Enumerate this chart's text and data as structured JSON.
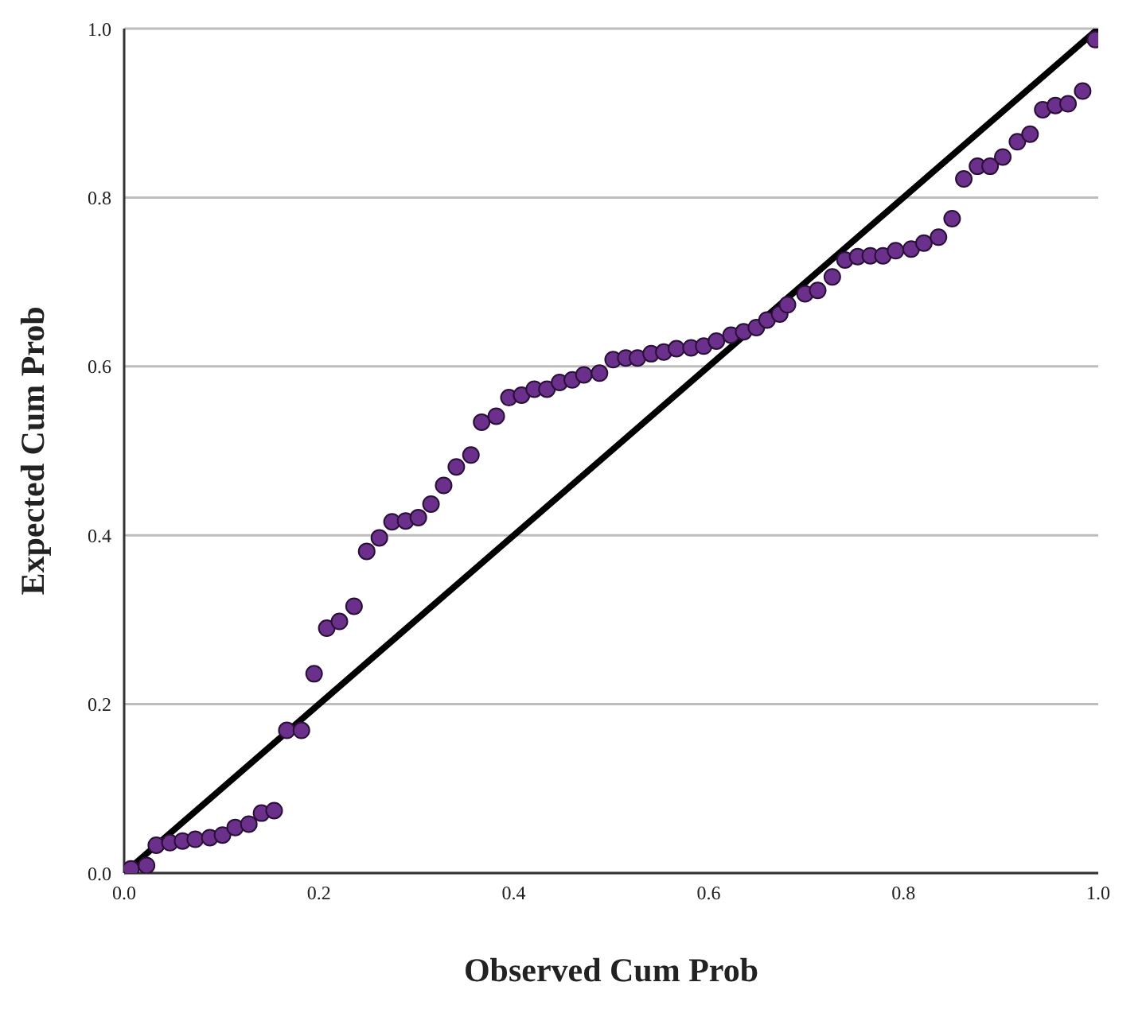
{
  "chart_data": {
    "type": "scatter",
    "xlabel": "Observed Cum Prob",
    "ylabel": "Expected Cum Prob",
    "xlim": [
      0,
      1
    ],
    "ylim": [
      0,
      1
    ],
    "xticks": [
      {
        "value": 0,
        "label": "0.0"
      },
      {
        "value": 0.2,
        "label": "0.2"
      },
      {
        "value": 0.4,
        "label": "0.4"
      },
      {
        "value": 0.6,
        "label": "0.6"
      },
      {
        "value": 0.8,
        "label": "0.8"
      },
      {
        "value": 1,
        "label": "1.0"
      }
    ],
    "yticks": [
      {
        "value": 0,
        "label": "0.0"
      },
      {
        "value": 0.2,
        "label": "0.2"
      },
      {
        "value": 0.4,
        "label": "0.4"
      },
      {
        "value": 0.6,
        "label": "0.6"
      },
      {
        "value": 0.8,
        "label": "0.8"
      },
      {
        "value": 1,
        "label": "1.0"
      }
    ],
    "grid": "y",
    "series": [
      {
        "color": "#6b2f8c",
        "marker": "circle",
        "x": [
          0.007,
          0.023,
          0.033,
          0.047,
          0.06,
          0.073,
          0.088,
          0.101,
          0.114,
          0.128,
          0.141,
          0.154,
          0.167,
          0.182,
          0.195,
          0.208,
          0.221,
          0.236,
          0.249,
          0.262,
          0.275,
          0.289,
          0.302,
          0.315,
          0.328,
          0.341,
          0.356,
          0.367,
          0.382,
          0.395,
          0.408,
          0.421,
          0.434,
          0.447,
          0.46,
          0.472,
          0.488,
          0.502,
          0.515,
          0.527,
          0.541,
          0.554,
          0.567,
          0.582,
          0.595,
          0.608,
          0.623,
          0.636,
          0.649,
          0.66,
          0.673,
          0.681,
          0.699,
          0.712,
          0.727,
          0.74,
          0.753,
          0.766,
          0.779,
          0.792,
          0.808,
          0.821,
          0.836,
          0.85,
          0.862,
          0.876,
          0.889,
          0.902,
          0.917,
          0.93,
          0.943,
          0.956,
          0.969,
          0.984,
          0.997
        ],
        "values": [
          0.005,
          0.009,
          0.033,
          0.036,
          0.038,
          0.04,
          0.042,
          0.045,
          0.054,
          0.058,
          0.071,
          0.074,
          0.169,
          0.169,
          0.236,
          0.29,
          0.298,
          0.316,
          0.381,
          0.397,
          0.416,
          0.417,
          0.421,
          0.437,
          0.459,
          0.481,
          0.495,
          0.534,
          0.541,
          0.563,
          0.566,
          0.573,
          0.573,
          0.581,
          0.584,
          0.59,
          0.592,
          0.608,
          0.61,
          0.61,
          0.615,
          0.617,
          0.621,
          0.622,
          0.624,
          0.63,
          0.637,
          0.641,
          0.646,
          0.655,
          0.662,
          0.673,
          0.686,
          0.69,
          0.706,
          0.726,
          0.73,
          0.731,
          0.731,
          0.737,
          0.739,
          0.746,
          0.753,
          0.775,
          0.822,
          0.837,
          0.837,
          0.848,
          0.866,
          0.875,
          0.904,
          0.909,
          0.911,
          0.926,
          0.987
        ]
      },
      {
        "type": "line",
        "color": "#000000",
        "marker": "none",
        "line_style": "solid",
        "x": [
          0,
          1
        ],
        "values": [
          0,
          1
        ]
      }
    ]
  }
}
